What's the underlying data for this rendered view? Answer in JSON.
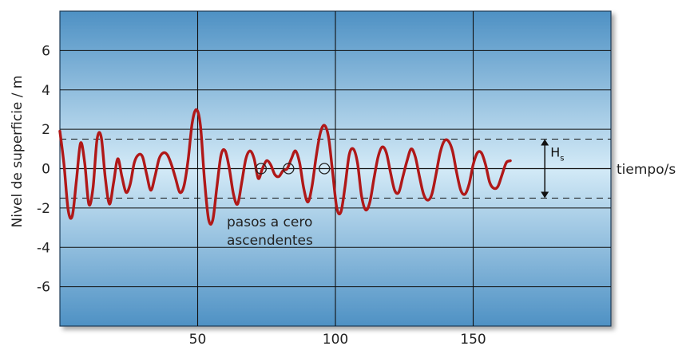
{
  "chart_data": {
    "type": "line",
    "title": "",
    "ylabel": "Nivel de superficie / m",
    "xlabel": "tiempo/s",
    "xlim": [
      0,
      200
    ],
    "ylim": [
      -8,
      8
    ],
    "x_ticks": [
      50,
      100,
      150
    ],
    "y_ticks": [
      6,
      4,
      2,
      0,
      -2,
      -4,
      -6
    ],
    "grid": true,
    "series": [
      {
        "color": "#b01818",
        "points": [
          [
            0,
            1.9
          ],
          [
            1.5,
            0.2
          ],
          [
            3,
            -2.1
          ],
          [
            4.5,
            -2.4
          ],
          [
            6,
            -0.6
          ],
          [
            7.5,
            1.3
          ],
          [
            9,
            0.3
          ],
          [
            10.5,
            -1.8
          ],
          [
            12,
            -1.0
          ],
          [
            13.5,
            1.5
          ],
          [
            15,
            1.6
          ],
          [
            16.5,
            -0.5
          ],
          [
            18,
            -1.8
          ],
          [
            19.5,
            -0.7
          ],
          [
            21,
            0.5
          ],
          [
            22.5,
            -0.4
          ],
          [
            24,
            -1.2
          ],
          [
            25.5,
            -0.8
          ],
          [
            27,
            0.3
          ],
          [
            28.5,
            0.7
          ],
          [
            30,
            0.6
          ],
          [
            31.5,
            -0.3
          ],
          [
            33,
            -1.1
          ],
          [
            34.5,
            -0.4
          ],
          [
            36,
            0.5
          ],
          [
            37.5,
            0.8
          ],
          [
            39,
            0.7
          ],
          [
            40.5,
            0.2
          ],
          [
            42,
            -0.5
          ],
          [
            43.5,
            -1.2
          ],
          [
            45,
            -0.9
          ],
          [
            46.5,
            0.4
          ],
          [
            48,
            2.3
          ],
          [
            49.5,
            3.0
          ],
          [
            51,
            2.2
          ],
          [
            52.5,
            -0.6
          ],
          [
            54,
            -2.6
          ],
          [
            55.5,
            -2.6
          ],
          [
            57,
            -0.9
          ],
          [
            58.5,
            0.7
          ],
          [
            60,
            0.9
          ],
          [
            61.5,
            0.0
          ],
          [
            63,
            -1.3
          ],
          [
            64.5,
            -1.8
          ],
          [
            66,
            -0.7
          ],
          [
            67.5,
            0.5
          ],
          [
            69,
            0.9
          ],
          [
            70.5,
            0.5
          ],
          [
            72,
            -0.5
          ],
          [
            73.5,
            0.0
          ],
          [
            75,
            0.4
          ],
          [
            76.5,
            0.2
          ],
          [
            78,
            -0.3
          ],
          [
            79.5,
            -0.4
          ],
          [
            81,
            -0.1
          ],
          [
            82.5,
            0.0
          ],
          [
            84,
            0.5
          ],
          [
            85.5,
            0.9
          ],
          [
            87,
            0.3
          ],
          [
            88.5,
            -1.0
          ],
          [
            90,
            -1.7
          ],
          [
            91.5,
            -0.9
          ],
          [
            93,
            0.6
          ],
          [
            94.5,
            1.8
          ],
          [
            96,
            2.2
          ],
          [
            97.5,
            1.6
          ],
          [
            99,
            -0.2
          ],
          [
            100.5,
            -2.0
          ],
          [
            102,
            -2.2
          ],
          [
            103.5,
            -0.9
          ],
          [
            105,
            0.7
          ],
          [
            106.5,
            1.0
          ],
          [
            108,
            0.3
          ],
          [
            109.5,
            -1.4
          ],
          [
            111,
            -2.1
          ],
          [
            112.5,
            -1.7
          ],
          [
            114,
            -0.5
          ],
          [
            115.5,
            0.6
          ],
          [
            117,
            1.1
          ],
          [
            118.5,
            0.8
          ],
          [
            120,
            -0.2
          ],
          [
            121.5,
            -1.1
          ],
          [
            123,
            -1.2
          ],
          [
            124.5,
            -0.4
          ],
          [
            126,
            0.4
          ],
          [
            127.5,
            1.0
          ],
          [
            129,
            0.6
          ],
          [
            130.5,
            -0.4
          ],
          [
            132,
            -1.3
          ],
          [
            133.5,
            -1.6
          ],
          [
            135,
            -1.3
          ],
          [
            136.5,
            -0.3
          ],
          [
            138,
            0.8
          ],
          [
            139.5,
            1.4
          ],
          [
            141,
            1.4
          ],
          [
            142.5,
            0.9
          ],
          [
            144,
            -0.2
          ],
          [
            145.5,
            -1.1
          ],
          [
            147,
            -1.3
          ],
          [
            148.5,
            -0.8
          ],
          [
            150,
            0.2
          ],
          [
            151.5,
            0.8
          ],
          [
            153,
            0.8
          ],
          [
            154.5,
            0.2
          ],
          [
            156,
            -0.7
          ],
          [
            157.5,
            -1.0
          ],
          [
            159,
            -0.9
          ],
          [
            160.5,
            -0.3
          ],
          [
            162,
            0.3
          ],
          [
            163.5,
            0.4
          ]
        ]
      }
    ],
    "reference_lines": [
      1.5,
      -1.5
    ],
    "zero_crossings": [
      73,
      83,
      96
    ],
    "annotations": {
      "hs_label_main": "H",
      "hs_label_sub": "s",
      "hs_range": [
        1.5,
        -1.5
      ],
      "hs_x": 176,
      "text_lines": [
        "pasos a cero",
        "ascendentes"
      ]
    }
  }
}
